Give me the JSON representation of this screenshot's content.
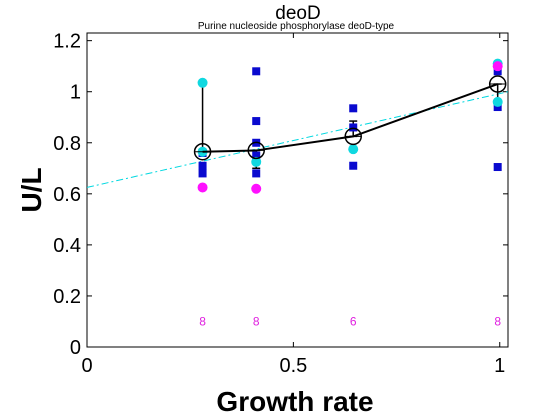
{
  "chart_data": {
    "type": "scatter",
    "title": "deoD",
    "subtitle": "Purine nucleoside phosphorylase deoD-type",
    "xlabel": "Growth rate",
    "ylabel": "U/L",
    "xlim": [
      0,
      1.02
    ],
    "ylim": [
      0,
      1.23
    ],
    "xticks": [
      0,
      0.5,
      1
    ],
    "xtick_labels": [
      "0",
      "0.5",
      "1"
    ],
    "yticks": [
      0,
      0.2,
      0.4,
      0.6,
      0.8,
      1,
      1.2
    ],
    "ytick_labels": [
      "0",
      "0.2",
      "0.4",
      "0.6",
      "0.8",
      "1",
      "1.2"
    ],
    "grid": false,
    "colors": {
      "blue_squares": "#0a0acf",
      "cyan_points": "#10d8e0",
      "magenta_points": "#ff10ff",
      "mean_line": "#000000",
      "trend_line": "#00d8e0",
      "count_labels": "#e020e0"
    },
    "blue_squares": [
      {
        "x": 0.28,
        "y": 0.76
      },
      {
        "x": 0.28,
        "y": 0.71
      },
      {
        "x": 0.28,
        "y": 0.68
      },
      {
        "x": 0.41,
        "y": 1.08
      },
      {
        "x": 0.41,
        "y": 0.885
      },
      {
        "x": 0.41,
        "y": 0.8
      },
      {
        "x": 0.41,
        "y": 0.75
      },
      {
        "x": 0.41,
        "y": 0.68
      },
      {
        "x": 0.645,
        "y": 0.935
      },
      {
        "x": 0.645,
        "y": 0.86
      },
      {
        "x": 0.645,
        "y": 0.71
      },
      {
        "x": 0.995,
        "y": 1.08
      },
      {
        "x": 0.995,
        "y": 0.94
      },
      {
        "x": 0.995,
        "y": 0.705
      }
    ],
    "cyan_points": [
      {
        "x": 0.28,
        "y": 1.035
      },
      {
        "x": 0.28,
        "y": 0.765
      },
      {
        "x": 0.41,
        "y": 0.725
      },
      {
        "x": 0.645,
        "y": 0.775
      },
      {
        "x": 0.995,
        "y": 1.11
      },
      {
        "x": 0.995,
        "y": 0.96
      }
    ],
    "magenta_points": [
      {
        "x": 0.28,
        "y": 0.625
      },
      {
        "x": 0.41,
        "y": 0.62
      },
      {
        "x": 0.995,
        "y": 1.1
      }
    ],
    "means": [
      {
        "x": 0.28,
        "y": 0.765
      },
      {
        "x": 0.41,
        "y": 0.77
      },
      {
        "x": 0.645,
        "y": 0.825
      },
      {
        "x": 0.995,
        "y": 1.03
      }
    ],
    "error_bars": [
      {
        "x": 0.28,
        "low": 0.765,
        "high": 1.035
      },
      {
        "x": 0.41,
        "low": 0.7,
        "high": 0.77
      },
      {
        "x": 0.645,
        "low": 0.825,
        "high": 0.885
      },
      {
        "x": 0.995,
        "low": 0.96,
        "high": 1.03
      }
    ],
    "trend_line": {
      "x": [
        0,
        1.02
      ],
      "y": [
        0.625,
        1.0
      ]
    },
    "counts": [
      {
        "x": 0.28,
        "label": "8"
      },
      {
        "x": 0.41,
        "label": "8"
      },
      {
        "x": 0.645,
        "label": "6"
      },
      {
        "x": 0.995,
        "label": "8"
      }
    ]
  }
}
